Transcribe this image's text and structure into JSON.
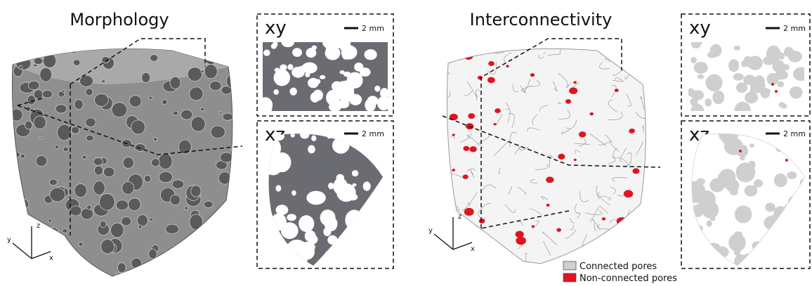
{
  "panels": [
    {
      "title": "Morphology",
      "axes": {
        "z": "z",
        "y": "y",
        "x": "x"
      },
      "slices": [
        {
          "label": "xy",
          "scale": "2 mm"
        },
        {
          "label": "xz",
          "scale": "2 mm"
        }
      ]
    },
    {
      "title": "Interconnectivity",
      "axes": {
        "z": "z",
        "y": "y",
        "x": "x"
      },
      "slices": [
        {
          "label": "xy",
          "scale": "2 mm"
        },
        {
          "label": "xz",
          "scale": "2 mm"
        }
      ]
    }
  ],
  "legend": [
    {
      "label": "Connected pores",
      "color": "#cfcfcf"
    },
    {
      "label": "Non-connected pores",
      "color": "#e0141e"
    }
  ]
}
